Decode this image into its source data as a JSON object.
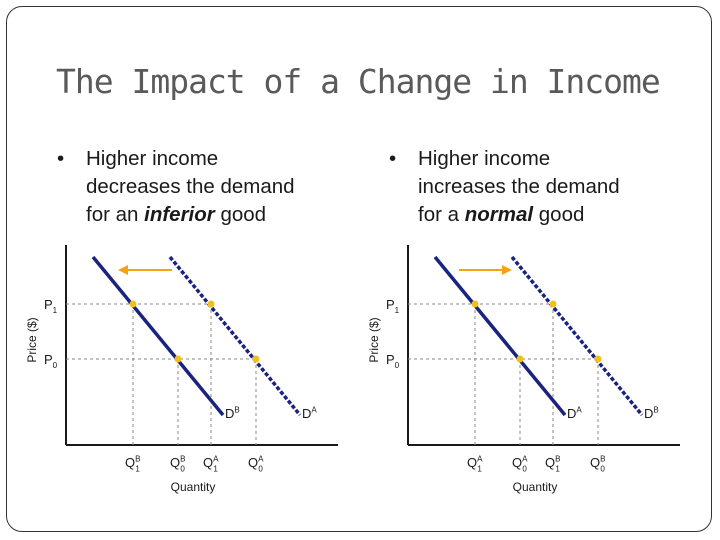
{
  "slide": {
    "title": "The Impact of a Change in Income",
    "bullets": [
      {
        "marker": "•",
        "line1": "Higher income",
        "line2": "decreases the demand",
        "line3_prefix": "for an ",
        "line3_emphasis": "inferior",
        "line3_suffix": " good"
      },
      {
        "marker": "•",
        "line1": "Higher income",
        "line2": "increases the demand",
        "line3_prefix": "for a ",
        "line3_emphasis": "normal",
        "line3_suffix": " good"
      }
    ]
  },
  "colors": {
    "curve": "#1a237e",
    "arrow": "#f2a413",
    "dot": "#f2c01c",
    "axis": "#1a1a1a",
    "guide": "#888888"
  },
  "graphs": [
    {
      "ylabel": "Price ($)",
      "xlabel": "Quantity",
      "p1": {
        "base": "P",
        "sub": "1"
      },
      "p0": {
        "base": "P",
        "sub": "0"
      },
      "q_labels": [
        {
          "base": "Q",
          "sup": "B",
          "sub": "1"
        },
        {
          "base": "Q",
          "sup": "B",
          "sub": "0"
        },
        {
          "base": "Q",
          "sup": "A",
          "sub": "1"
        },
        {
          "base": "Q",
          "sup": "A",
          "sub": "0"
        }
      ],
      "curve_solid": {
        "base": "D",
        "sup": "B"
      },
      "curve_dashed": {
        "base": "D",
        "sup": "A"
      },
      "arrow_direction": "left"
    },
    {
      "ylabel": "Price ($)",
      "xlabel": "Quantity",
      "p1": {
        "base": "P",
        "sub": "1"
      },
      "p0": {
        "base": "P",
        "sub": "0"
      },
      "q_labels": [
        {
          "base": "Q",
          "sup": "A",
          "sub": "1"
        },
        {
          "base": "Q",
          "sup": "A",
          "sub": "0"
        },
        {
          "base": "Q",
          "sup": "B",
          "sub": "1"
        },
        {
          "base": "Q",
          "sup": "B",
          "sub": "0"
        }
      ],
      "curve_solid": {
        "base": "D",
        "sup": "A"
      },
      "curve_dashed": {
        "base": "D",
        "sup": "B"
      },
      "arrow_direction": "right"
    }
  ]
}
